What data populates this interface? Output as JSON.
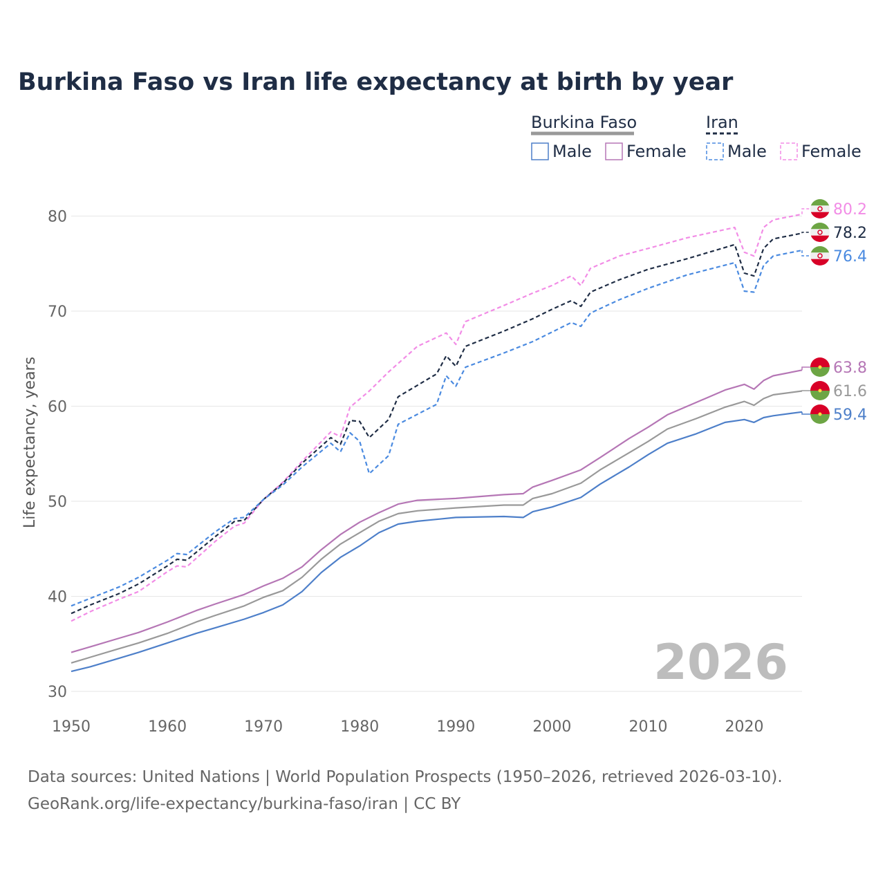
{
  "chart_data": {
    "type": "line",
    "title": "Burkina Faso vs Iran life expectancy at birth by year",
    "ylabel": "Life expectancy, years",
    "xlabel": "",
    "xlim": [
      1950,
      2026
    ],
    "ylim": [
      30,
      83
    ],
    "x_ticks": [
      1950,
      1960,
      1970,
      1980,
      1990,
      2000,
      2010,
      2020
    ],
    "y_ticks": [
      30,
      40,
      50,
      60,
      70,
      80
    ],
    "year_watermark": "2026",
    "legend": {
      "group_burkina": "Burkina Faso",
      "group_iran": "Iran",
      "bf_male": "Male",
      "bf_female": "Female",
      "ir_male": "Male",
      "ir_female": "Female"
    },
    "series": [
      {
        "name": "Iran Female",
        "color": "#f28ce6",
        "dash": true,
        "points": [
          [
            1950,
            37.4
          ],
          [
            1952,
            38.4
          ],
          [
            1955,
            39.7
          ],
          [
            1957,
            40.5
          ],
          [
            1960,
            42.6
          ],
          [
            1961,
            43.2
          ],
          [
            1962,
            43.1
          ],
          [
            1965,
            45.8
          ],
          [
            1967,
            47.4
          ],
          [
            1968,
            47.7
          ],
          [
            1970,
            50.2
          ],
          [
            1972,
            52.0
          ],
          [
            1974,
            54.2
          ],
          [
            1977,
            57.3
          ],
          [
            1978,
            56.8
          ],
          [
            1979,
            59.9
          ],
          [
            1981,
            61.6
          ],
          [
            1983,
            63.6
          ],
          [
            1986,
            66.3
          ],
          [
            1989,
            67.7
          ],
          [
            1990,
            66.5
          ],
          [
            1991,
            68.9
          ],
          [
            1995,
            70.6
          ],
          [
            1998,
            71.9
          ],
          [
            2000,
            72.7
          ],
          [
            2002,
            73.7
          ],
          [
            2003,
            72.7
          ],
          [
            2004,
            74.5
          ],
          [
            2007,
            75.8
          ],
          [
            2010,
            76.6
          ],
          [
            2014,
            77.7
          ],
          [
            2019,
            78.8
          ],
          [
            2020,
            76.2
          ],
          [
            2021,
            75.8
          ],
          [
            2022,
            78.8
          ],
          [
            2023,
            79.6
          ],
          [
            2026,
            80.2
          ]
        ],
        "end_label": "80.2"
      },
      {
        "name": "Iran Total",
        "color": "#1f2d45",
        "dash": true,
        "points": [
          [
            1950,
            38.2
          ],
          [
            1952,
            39.1
          ],
          [
            1955,
            40.3
          ],
          [
            1957,
            41.3
          ],
          [
            1960,
            43.2
          ],
          [
            1961,
            43.9
          ],
          [
            1962,
            43.8
          ],
          [
            1965,
            46.3
          ],
          [
            1967,
            47.9
          ],
          [
            1968,
            48.0
          ],
          [
            1970,
            50.2
          ],
          [
            1972,
            51.9
          ],
          [
            1974,
            54.0
          ],
          [
            1977,
            56.7
          ],
          [
            1978,
            56.0
          ],
          [
            1979,
            58.5
          ],
          [
            1980,
            58.4
          ],
          [
            1981,
            56.7
          ],
          [
            1983,
            58.6
          ],
          [
            1984,
            61.0
          ],
          [
            1988,
            63.4
          ],
          [
            1989,
            65.3
          ],
          [
            1990,
            64.2
          ],
          [
            1991,
            66.3
          ],
          [
            1995,
            67.9
          ],
          [
            1998,
            69.2
          ],
          [
            2000,
            70.2
          ],
          [
            2002,
            71.1
          ],
          [
            2003,
            70.5
          ],
          [
            2004,
            72.0
          ],
          [
            2007,
            73.3
          ],
          [
            2010,
            74.4
          ],
          [
            2014,
            75.5
          ],
          [
            2019,
            77.0
          ],
          [
            2020,
            74.0
          ],
          [
            2021,
            73.7
          ],
          [
            2022,
            76.6
          ],
          [
            2023,
            77.6
          ],
          [
            2026,
            78.2
          ]
        ],
        "end_label": "78.2"
      },
      {
        "name": "Iran Male",
        "color": "#4a8ae0",
        "dash": true,
        "points": [
          [
            1950,
            39.0
          ],
          [
            1952,
            39.8
          ],
          [
            1955,
            41.0
          ],
          [
            1957,
            42.0
          ],
          [
            1960,
            43.8
          ],
          [
            1961,
            44.5
          ],
          [
            1962,
            44.4
          ],
          [
            1965,
            46.8
          ],
          [
            1967,
            48.2
          ],
          [
            1968,
            48.3
          ],
          [
            1970,
            50.2
          ],
          [
            1972,
            51.7
          ],
          [
            1974,
            53.6
          ],
          [
            1977,
            56.1
          ],
          [
            1978,
            55.2
          ],
          [
            1979,
            57.2
          ],
          [
            1980,
            56.3
          ],
          [
            1981,
            52.9
          ],
          [
            1983,
            54.8
          ],
          [
            1984,
            58.1
          ],
          [
            1988,
            60.2
          ],
          [
            1989,
            63.2
          ],
          [
            1990,
            62.1
          ],
          [
            1991,
            64.1
          ],
          [
            1995,
            65.6
          ],
          [
            1998,
            66.8
          ],
          [
            2000,
            67.8
          ],
          [
            2002,
            68.8
          ],
          [
            2003,
            68.4
          ],
          [
            2004,
            69.8
          ],
          [
            2007,
            71.2
          ],
          [
            2010,
            72.4
          ],
          [
            2014,
            73.8
          ],
          [
            2019,
            75.1
          ],
          [
            2020,
            72.1
          ],
          [
            2021,
            72.0
          ],
          [
            2022,
            74.8
          ],
          [
            2023,
            75.8
          ],
          [
            2026,
            76.4
          ]
        ],
        "end_label": "76.4"
      },
      {
        "name": "Burkina Faso Female",
        "color": "#b576b5",
        "dash": false,
        "points": [
          [
            1950,
            34.1
          ],
          [
            1952,
            34.7
          ],
          [
            1955,
            35.6
          ],
          [
            1957,
            36.2
          ],
          [
            1960,
            37.3
          ],
          [
            1963,
            38.5
          ],
          [
            1965,
            39.2
          ],
          [
            1968,
            40.2
          ],
          [
            1970,
            41.1
          ],
          [
            1972,
            41.9
          ],
          [
            1974,
            43.1
          ],
          [
            1976,
            44.9
          ],
          [
            1978,
            46.5
          ],
          [
            1980,
            47.8
          ],
          [
            1982,
            48.8
          ],
          [
            1984,
            49.7
          ],
          [
            1986,
            50.1
          ],
          [
            1990,
            50.3
          ],
          [
            1995,
            50.7
          ],
          [
            1997,
            50.8
          ],
          [
            1998,
            51.5
          ],
          [
            2000,
            52.2
          ],
          [
            2003,
            53.3
          ],
          [
            2005,
            54.6
          ],
          [
            2008,
            56.6
          ],
          [
            2010,
            57.8
          ],
          [
            2012,
            59.1
          ],
          [
            2015,
            60.4
          ],
          [
            2018,
            61.7
          ],
          [
            2020,
            62.3
          ],
          [
            2021,
            61.8
          ],
          [
            2022,
            62.7
          ],
          [
            2023,
            63.2
          ],
          [
            2026,
            63.8
          ]
        ],
        "end_label": "63.8"
      },
      {
        "name": "Burkina Faso Total",
        "color": "#999999",
        "dash": false,
        "points": [
          [
            1950,
            33.0
          ],
          [
            1952,
            33.6
          ],
          [
            1955,
            34.5
          ],
          [
            1957,
            35.1
          ],
          [
            1960,
            36.1
          ],
          [
            1963,
            37.3
          ],
          [
            1965,
            38.0
          ],
          [
            1968,
            39.0
          ],
          [
            1970,
            39.9
          ],
          [
            1972,
            40.6
          ],
          [
            1974,
            42.0
          ],
          [
            1976,
            43.9
          ],
          [
            1978,
            45.5
          ],
          [
            1980,
            46.7
          ],
          [
            1982,
            47.9
          ],
          [
            1984,
            48.7
          ],
          [
            1986,
            49.0
          ],
          [
            1990,
            49.3
          ],
          [
            1995,
            49.6
          ],
          [
            1997,
            49.6
          ],
          [
            1998,
            50.3
          ],
          [
            2000,
            50.8
          ],
          [
            2003,
            51.9
          ],
          [
            2005,
            53.3
          ],
          [
            2008,
            55.1
          ],
          [
            2010,
            56.3
          ],
          [
            2012,
            57.6
          ],
          [
            2015,
            58.7
          ],
          [
            2018,
            59.9
          ],
          [
            2020,
            60.5
          ],
          [
            2021,
            60.1
          ],
          [
            2022,
            60.8
          ],
          [
            2023,
            61.2
          ],
          [
            2026,
            61.6
          ]
        ],
        "end_label": "61.6"
      },
      {
        "name": "Burkina Faso Male",
        "color": "#4d7fc9",
        "dash": false,
        "points": [
          [
            1950,
            32.1
          ],
          [
            1952,
            32.6
          ],
          [
            1955,
            33.5
          ],
          [
            1957,
            34.1
          ],
          [
            1960,
            35.1
          ],
          [
            1963,
            36.1
          ],
          [
            1965,
            36.7
          ],
          [
            1968,
            37.6
          ],
          [
            1970,
            38.3
          ],
          [
            1972,
            39.1
          ],
          [
            1974,
            40.5
          ],
          [
            1976,
            42.5
          ],
          [
            1978,
            44.1
          ],
          [
            1980,
            45.3
          ],
          [
            1982,
            46.7
          ],
          [
            1984,
            47.6
          ],
          [
            1986,
            47.9
          ],
          [
            1990,
            48.3
          ],
          [
            1995,
            48.4
          ],
          [
            1997,
            48.3
          ],
          [
            1998,
            48.9
          ],
          [
            2000,
            49.4
          ],
          [
            2003,
            50.4
          ],
          [
            2005,
            51.8
          ],
          [
            2008,
            53.6
          ],
          [
            2010,
            54.9
          ],
          [
            2012,
            56.1
          ],
          [
            2015,
            57.1
          ],
          [
            2018,
            58.3
          ],
          [
            2020,
            58.6
          ],
          [
            2021,
            58.3
          ],
          [
            2022,
            58.8
          ],
          [
            2023,
            59.0
          ],
          [
            2026,
            59.4
          ]
        ],
        "end_label": "59.4"
      }
    ]
  },
  "source": {
    "line1": "Data sources: United Nations | World Population Prospects (1950–2026, retrieved 2026-03-10).",
    "line2": "GeoRank.org/life-expectancy/burkina-faso/iran | CC BY"
  }
}
